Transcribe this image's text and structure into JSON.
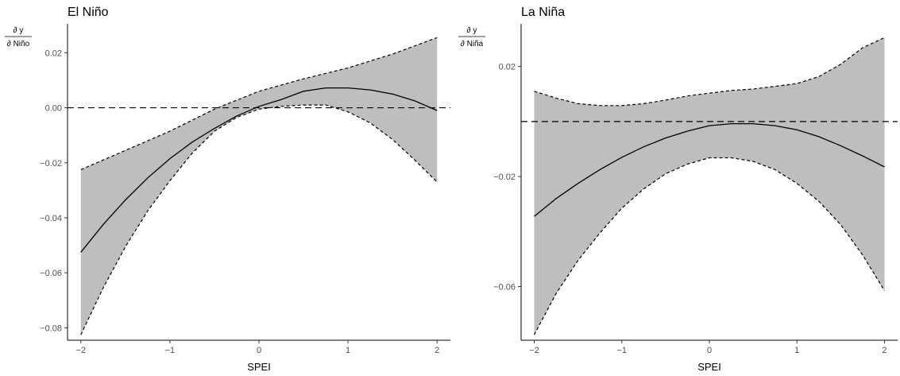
{
  "chart_data": [
    {
      "type": "line",
      "title": "El Niño",
      "xlabel": "SPEI",
      "ylabel_numerator": "∂ y",
      "ylabel_denominator": "∂ Niño",
      "xlim": [
        -2.15,
        2.15
      ],
      "ylim": [
        -0.0845,
        0.0305
      ],
      "xticks": [
        -2,
        -1,
        0,
        1,
        2
      ],
      "yticks": [
        -0.08,
        -0.06,
        -0.04,
        -0.02,
        0.0,
        0.02
      ],
      "ytick_labels": [
        "−0.08",
        "−0.06",
        "−0.04",
        "−0.02",
        "0.00",
        "0.02"
      ],
      "xtick_labels": [
        "−2",
        "−1",
        "0",
        "1",
        "2"
      ],
      "reference_line_y": 0,
      "grid": false,
      "band_color": "#bebebe",
      "series": [
        {
          "role": "upper",
          "x": [
            -2,
            -1.5,
            -1,
            -0.5,
            0,
            0.5,
            1,
            1.5,
            2
          ],
          "y": [
            -0.0225,
            -0.0155,
            -0.0085,
            -0.0005,
            0.006,
            0.0105,
            0.0145,
            0.0195,
            0.0255
          ]
        },
        {
          "role": "estimate",
          "x": [
            -2,
            -1.75,
            -1.5,
            -1.25,
            -1,
            -0.75,
            -0.5,
            -0.25,
            0,
            0.25,
            0.5,
            0.75,
            1,
            1.25,
            1.5,
            1.75,
            2
          ],
          "y": [
            -0.0525,
            -0.0425,
            -0.0335,
            -0.0255,
            -0.0185,
            -0.0125,
            -0.0075,
            -0.003,
            0.0005,
            0.003,
            0.006,
            0.0072,
            0.0072,
            0.0065,
            0.005,
            0.0025,
            -0.001
          ]
        },
        {
          "role": "lower",
          "x": [
            -2,
            -1.75,
            -1.5,
            -1.25,
            -1,
            -0.75,
            -0.5,
            -0.25,
            0,
            0.25,
            0.5,
            0.75,
            1,
            1.25,
            1.5,
            1.75,
            2
          ],
          "y": [
            -0.0825,
            -0.0655,
            -0.0505,
            -0.0375,
            -0.0265,
            -0.0165,
            -0.0085,
            -0.0035,
            -0.0005,
            0.0005,
            0.001,
            0.001,
            -0.0015,
            -0.0055,
            -0.0115,
            -0.019,
            -0.027
          ]
        }
      ]
    },
    {
      "type": "line",
      "title": "La Niña",
      "xlabel": "SPEI",
      "ylabel_numerator": "∂ y",
      "ylabel_denominator": "∂ Niña",
      "xlim": [
        -2.15,
        2.15
      ],
      "ylim": [
        -0.0795,
        0.0355
      ],
      "xticks": [
        -2,
        -1,
        0,
        1,
        2
      ],
      "yticks": [
        -0.06,
        -0.02,
        0.02
      ],
      "ytick_labels": [
        "−0.06",
        "−0.02",
        "0.02"
      ],
      "xtick_labels": [
        "−2",
        "−1",
        "0",
        "1",
        "2"
      ],
      "reference_line_y": 0,
      "grid": false,
      "band_color": "#bebebe",
      "series": [
        {
          "role": "upper",
          "x": [
            -2,
            -1.75,
            -1.5,
            -1.25,
            -1,
            -0.75,
            -0.5,
            -0.25,
            0,
            0.25,
            0.5,
            0.75,
            1,
            1.25,
            1.5,
            1.75,
            2
          ],
          "y": [
            0.011,
            0.0085,
            0.0065,
            0.0058,
            0.0058,
            0.0065,
            0.0078,
            0.0093,
            0.0103,
            0.0113,
            0.0118,
            0.0128,
            0.0138,
            0.0163,
            0.0208,
            0.0268,
            0.0305
          ]
        },
        {
          "role": "estimate",
          "x": [
            -2,
            -1.75,
            -1.5,
            -1.25,
            -1,
            -0.75,
            -0.5,
            -0.25,
            0,
            0.25,
            0.5,
            0.75,
            1,
            1.25,
            1.5,
            1.75,
            2
          ],
          "y": [
            -0.0345,
            -0.028,
            -0.0225,
            -0.0175,
            -0.013,
            -0.0092,
            -0.006,
            -0.0035,
            -0.0015,
            -0.0008,
            -0.0008,
            -0.0015,
            -0.003,
            -0.0055,
            -0.0088,
            -0.0125,
            -0.0165
          ]
        },
        {
          "role": "lower",
          "x": [
            -2,
            -1.75,
            -1.5,
            -1.25,
            -1,
            -0.75,
            -0.5,
            -0.25,
            0,
            0.25,
            0.5,
            0.75,
            1,
            1.25,
            1.5,
            1.75,
            2
          ],
          "y": [
            -0.0775,
            -0.0625,
            -0.0505,
            -0.0405,
            -0.0315,
            -0.0245,
            -0.019,
            -0.0155,
            -0.0132,
            -0.0132,
            -0.0145,
            -0.0175,
            -0.0225,
            -0.029,
            -0.0375,
            -0.0485,
            -0.0615
          ]
        }
      ]
    }
  ]
}
